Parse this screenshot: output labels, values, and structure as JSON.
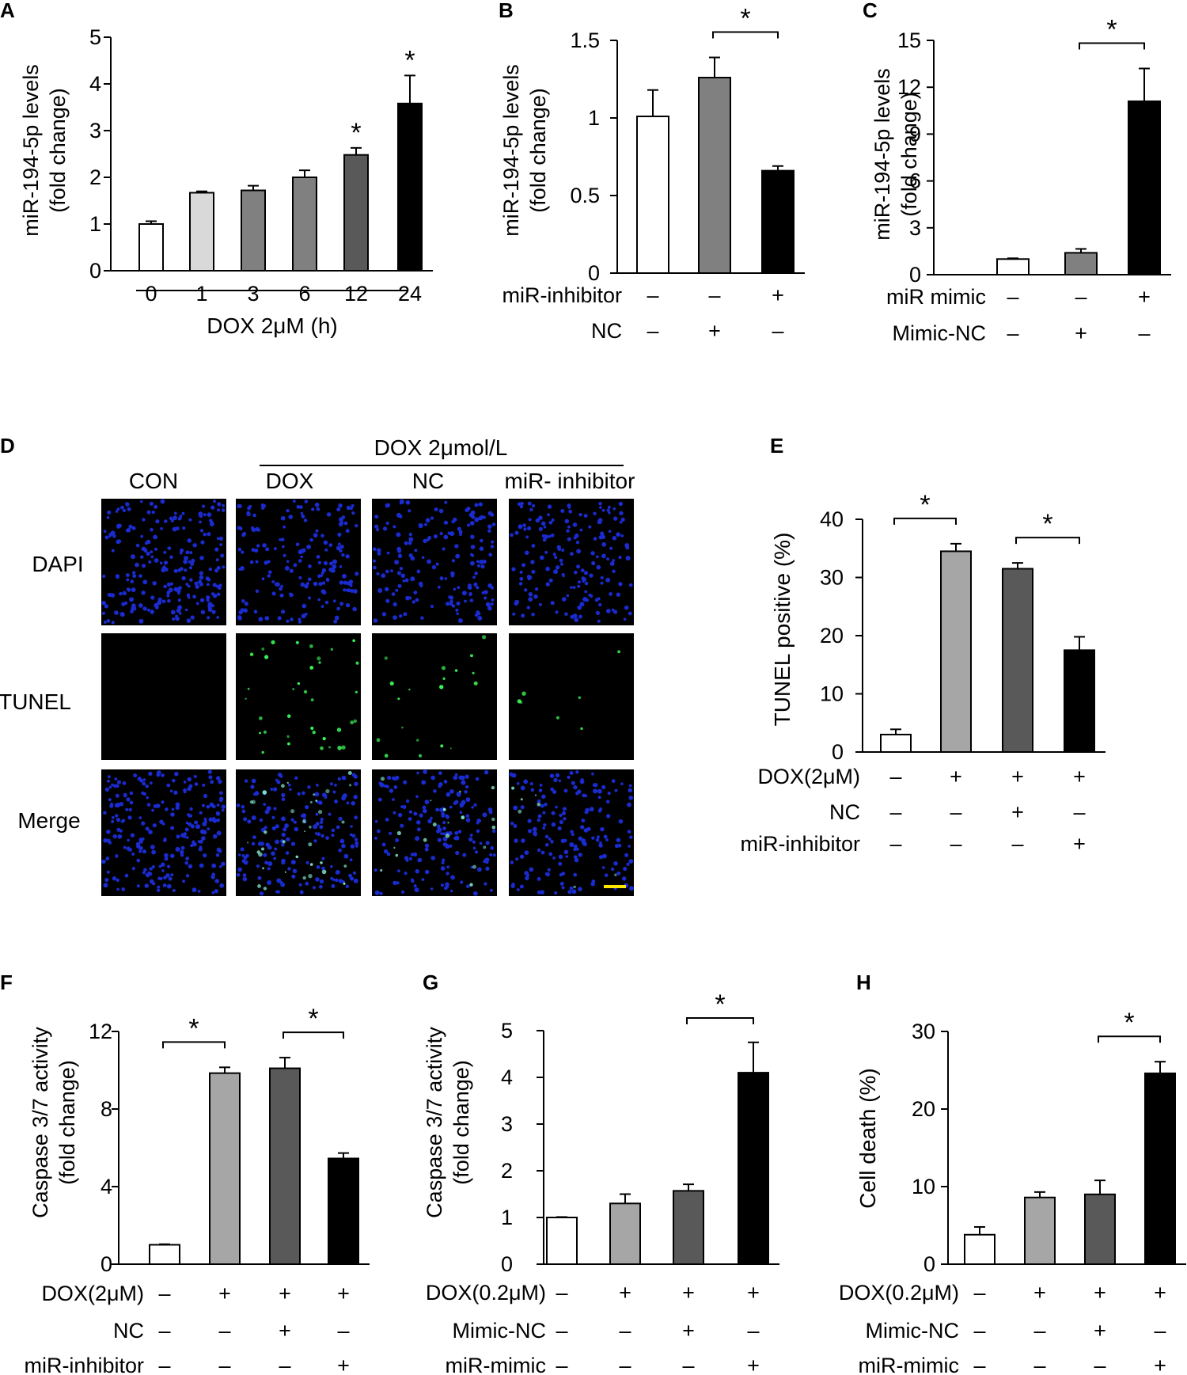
{
  "colors": {
    "white": "#ffffff",
    "light_gray": "#d9d9d9",
    "mid_gray": "#a6a6a6",
    "gray": "#808080",
    "dark_gray": "#595959",
    "black": "#000000",
    "dapi_blue": "#1a2bd0",
    "tunel_green": "#3cff5a",
    "scale_bar": "#ffe600"
  },
  "chart_data": [
    {
      "id": "A",
      "panel_label": "A",
      "type": "bar",
      "ylabel_lines": [
        "miR-194-5p levels",
        "(fold change)"
      ],
      "ylim": [
        0,
        5
      ],
      "yticks": [
        "0",
        "1",
        "2",
        "3",
        "4",
        "5"
      ],
      "categories": [
        "0",
        "1",
        "3",
        "6",
        "12",
        "24"
      ],
      "xlabel": "DOX 2μM (h)",
      "values": [
        1.0,
        1.67,
        1.72,
        2.0,
        2.48,
        3.58
      ],
      "errors": [
        0.06,
        0.03,
        0.1,
        0.15,
        0.15,
        0.6
      ],
      "bar_colors": [
        "white",
        "light_gray",
        "gray",
        "gray",
        "dark_gray",
        "black"
      ],
      "stars": [
        "",
        "",
        "",
        "",
        "*",
        "*"
      ],
      "brackets": []
    },
    {
      "id": "B",
      "panel_label": "B",
      "type": "bar",
      "ylabel_lines": [
        "miR-194-5p levels",
        "(fold change)"
      ],
      "ylim": [
        0,
        1.5
      ],
      "yticks": [
        "0",
        "0.5",
        "1",
        "1.5"
      ],
      "values": [
        1.01,
        1.26,
        0.66
      ],
      "errors": [
        0.17,
        0.13,
        0.03
      ],
      "bar_colors": [
        "white",
        "gray",
        "black"
      ],
      "rows": [
        {
          "label": "miR-inhibitor",
          "signs": [
            "–",
            "–",
            "+"
          ]
        },
        {
          "label": "NC",
          "signs": [
            "–",
            "+",
            "–"
          ]
        }
      ],
      "brackets": [
        {
          "from": 1,
          "to": 2,
          "label": "*"
        }
      ]
    },
    {
      "id": "C",
      "panel_label": "C",
      "type": "bar",
      "ylabel_lines": [
        "miR-194-5p levels",
        "(fold change)"
      ],
      "ylim": [
        0,
        15
      ],
      "yticks": [
        "0",
        "3",
        "6",
        "9",
        "12",
        "15"
      ],
      "values": [
        1.0,
        1.4,
        11.1
      ],
      "errors": [
        0.05,
        0.25,
        2.1
      ],
      "bar_colors": [
        "white",
        "gray",
        "black"
      ],
      "rows": [
        {
          "label": "miR mimic",
          "signs": [
            "–",
            "–",
            "+"
          ]
        },
        {
          "label": "Mimic-NC",
          "signs": [
            "–",
            "+",
            "–"
          ]
        }
      ],
      "brackets": [
        {
          "from": 1,
          "to": 2,
          "label": "*"
        }
      ]
    },
    {
      "id": "E",
      "panel_label": "E",
      "type": "bar",
      "ylabel_lines": [
        "TUNEL positive (%)"
      ],
      "ylim": [
        0,
        40
      ],
      "yticks": [
        "0",
        "10",
        "20",
        "30",
        "40"
      ],
      "values": [
        3.0,
        34.5,
        31.5,
        17.5
      ],
      "errors": [
        0.9,
        1.3,
        1.0,
        2.3
      ],
      "bar_colors": [
        "white",
        "mid_gray",
        "dark_gray",
        "black"
      ],
      "rows": [
        {
          "label": "DOX(2μM)",
          "signs": [
            "–",
            "+",
            "+",
            "+"
          ]
        },
        {
          "label": "NC",
          "signs": [
            "–",
            "–",
            "+",
            "–"
          ]
        },
        {
          "label": "miR-inhibitor",
          "signs": [
            "–",
            "–",
            "–",
            "+"
          ]
        }
      ],
      "brackets": [
        {
          "from": 0,
          "to": 1,
          "label": "*"
        },
        {
          "from": 2,
          "to": 3,
          "label": "*"
        }
      ]
    },
    {
      "id": "F",
      "panel_label": "F",
      "type": "bar",
      "ylabel_lines": [
        "Caspase 3/7 activity",
        "(fold change)"
      ],
      "ylim": [
        0,
        12
      ],
      "yticks": [
        "0",
        "4",
        "8",
        "12"
      ],
      "values": [
        1.0,
        9.85,
        10.1,
        5.45
      ],
      "errors": [
        0.03,
        0.3,
        0.55,
        0.28
      ],
      "bar_colors": [
        "white",
        "mid_gray",
        "dark_gray",
        "black"
      ],
      "rows": [
        {
          "label": "DOX(2μM)",
          "signs": [
            "–",
            "+",
            "+",
            "+"
          ]
        },
        {
          "label": "NC",
          "signs": [
            "–",
            "–",
            "+",
            "–"
          ]
        },
        {
          "label": "miR-inhibitor",
          "signs": [
            "–",
            "–",
            "–",
            "+"
          ]
        }
      ],
      "brackets": [
        {
          "from": 0,
          "to": 1,
          "label": "*"
        },
        {
          "from": 2,
          "to": 3,
          "label": "*"
        }
      ]
    },
    {
      "id": "G",
      "panel_label": "G",
      "type": "bar",
      "ylabel_lines": [
        "Caspase 3/7 activity",
        "(fold change)"
      ],
      "ylim": [
        0,
        5
      ],
      "yticks": [
        "0",
        "1",
        "2",
        "3",
        "4",
        "5"
      ],
      "values": [
        1.0,
        1.3,
        1.57,
        4.1
      ],
      "errors": [
        0.01,
        0.2,
        0.14,
        0.65
      ],
      "bar_colors": [
        "white",
        "mid_gray",
        "dark_gray",
        "black"
      ],
      "rows": [
        {
          "label": "DOX(0.2μM)",
          "signs": [
            "–",
            "+",
            "+",
            "+"
          ]
        },
        {
          "label": "Mimic-NC",
          "signs": [
            "–",
            "–",
            "+",
            "–"
          ]
        },
        {
          "label": "miR-mimic",
          "signs": [
            "–",
            "–",
            "–",
            "+"
          ]
        }
      ],
      "brackets": [
        {
          "from": 2,
          "to": 3,
          "label": "*"
        }
      ]
    },
    {
      "id": "H",
      "panel_label": "H",
      "type": "bar",
      "ylabel_lines": [
        "Cell death (%)"
      ],
      "ylim": [
        0,
        30
      ],
      "yticks": [
        "0",
        "10",
        "20",
        "30"
      ],
      "values": [
        3.8,
        8.6,
        9.0,
        24.6
      ],
      "errors": [
        1.0,
        0.7,
        1.8,
        1.5
      ],
      "bar_colors": [
        "white",
        "mid_gray",
        "dark_gray",
        "black"
      ],
      "rows": [
        {
          "label": "DOX(0.2μM)",
          "signs": [
            "–",
            "+",
            "+",
            "+"
          ]
        },
        {
          "label": "Mimic-NC",
          "signs": [
            "–",
            "–",
            "+",
            "–"
          ]
        },
        {
          "label": "miR-mimic",
          "signs": [
            "–",
            "–",
            "–",
            "+"
          ]
        }
      ],
      "brackets": [
        {
          "from": 2,
          "to": 3,
          "label": "*"
        }
      ]
    }
  ],
  "microscopy": {
    "panel_label": "D",
    "header_group": "DOX 2μmol/L",
    "columns": [
      "CON",
      "DOX",
      "NC",
      "miR- inhibitor"
    ],
    "rows": [
      "DAPI",
      "TUNEL",
      "Merge"
    ],
    "tunel_density": [
      0.003,
      0.3,
      0.16,
      0.06
    ],
    "nuclei_density": [
      1.0,
      0.75,
      0.75,
      0.75
    ]
  }
}
